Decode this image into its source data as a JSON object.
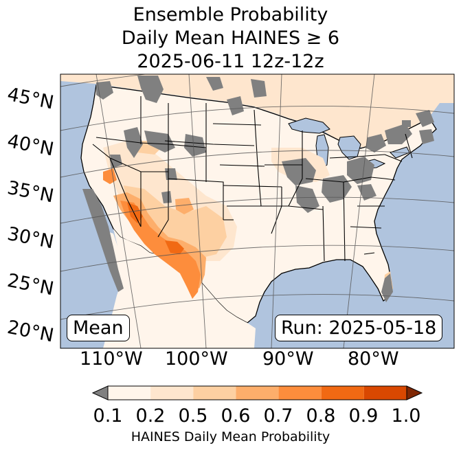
{
  "title": {
    "line1": "Ensemble Probability",
    "line2": "Daily Mean HAINES ≥ 6",
    "line3": "2025-06-11 12z-12z"
  },
  "map": {
    "lat_labels": [
      "45°N",
      "40°N",
      "35°N",
      "30°N",
      "25°N",
      "20°N"
    ],
    "lon_labels": [
      "110°W",
      "100°W",
      "90°W",
      "80°W"
    ],
    "stat_label": "Mean",
    "run_label": "Run: 2025-05-18",
    "colors": {
      "ocean": "#b0c4de",
      "land_base": "#fff5eb",
      "missing": "#808080",
      "grid": "#555555"
    }
  },
  "colorbar": {
    "label": "HAINES Daily Mean Probability",
    "ticks": [
      "0.1",
      "0.2",
      "0.5",
      "0.6",
      "0.7",
      "0.8",
      "0.9",
      "1.0"
    ],
    "under_color": "#808080",
    "over_color": "#7f2704",
    "bins": [
      {
        "from": 0.1,
        "to": 0.2,
        "color": "#fff5eb"
      },
      {
        "from": 0.2,
        "to": 0.5,
        "color": "#fee6ce"
      },
      {
        "from": 0.5,
        "to": 0.6,
        "color": "#fdd0a2"
      },
      {
        "from": 0.6,
        "to": 0.7,
        "color": "#fdae6b"
      },
      {
        "from": 0.7,
        "to": 0.8,
        "color": "#fd8d3c"
      },
      {
        "from": 0.8,
        "to": 0.9,
        "color": "#f16913"
      },
      {
        "from": 0.9,
        "to": 1.0,
        "color": "#d94801"
      }
    ]
  }
}
